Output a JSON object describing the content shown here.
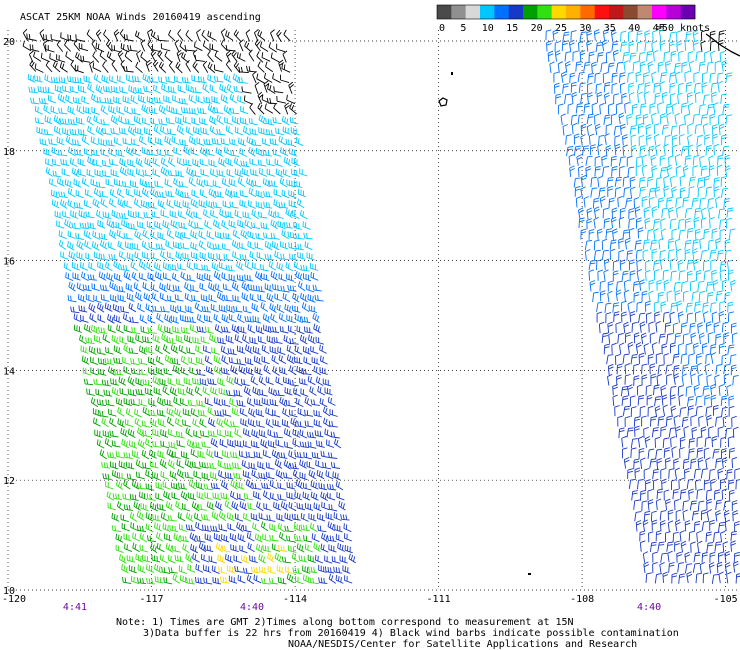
{
  "title": "ASCAT 25KM NOAA Winds 20160419 ascending",
  "color_scale": {
    "colors": [
      "#4a4a4a",
      "#909090",
      "#d8d8d8",
      "#00c8ff",
      "#0070ff",
      "#1838c8",
      "#00a000",
      "#30e010",
      "#ffd800",
      "#ffb000",
      "#ff6a00",
      "#ff1010",
      "#c01818",
      "#8a4a30",
      "#c08870",
      "#ff00ff",
      "#b800d8",
      "#6a00b0"
    ],
    "labels": [
      "0",
      "5",
      "10",
      "15",
      "20",
      "25",
      "30",
      "35",
      "40",
      "45",
      ">50 knots"
    ],
    "label_values": [
      0,
      5,
      10,
      15,
      20,
      25,
      30,
      35,
      40,
      45,
      50
    ]
  },
  "lat_labels": [
    {
      "value": 20,
      "text": "20"
    },
    {
      "value": 18,
      "text": "18"
    },
    {
      "value": 16,
      "text": "16"
    },
    {
      "value": 14,
      "text": "14"
    },
    {
      "value": 12,
      "text": "12"
    },
    {
      "value": 10,
      "text": "10"
    }
  ],
  "lon_labels": [
    {
      "value": -120,
      "text": "-120"
    },
    {
      "value": -117,
      "text": "-117"
    },
    {
      "value": -114,
      "text": "-114"
    },
    {
      "value": -111,
      "text": "-111"
    },
    {
      "value": -108,
      "text": "-108"
    },
    {
      "value": -105,
      "text": "-105"
    }
  ],
  "times": [
    {
      "lon": -118.6,
      "text": "4:41"
    },
    {
      "lon": -114.9,
      "text": "4:40"
    },
    {
      "lon": -106.6,
      "text": "4:40"
    }
  ],
  "notes": {
    "line1": "Note: 1) Times are GMT 2)Times along bottom correspond to measurement at 15N",
    "line2": "3)Data buffer is 22 hrs from 20160419 4) Black wind barbs indicate possible contamination",
    "line3": "NOAA/NESDIS/Center for Satellite Applications and Research"
  },
  "map": {
    "lon_range": [
      -120,
      -104.7
    ],
    "lat_range": [
      10,
      20.2
    ],
    "swaths": [
      {
        "name": "west",
        "north_lat": 20.0,
        "south_lat": 9.8,
        "north_lon": [
          -119.6,
          -114.1
        ],
        "south_lon": [
          -117.4,
          -112.6
        ]
      },
      {
        "name": "east",
        "north_lat": 20.0,
        "south_lat": 9.8,
        "north_lon": [
          -108.8,
          -105.0
        ],
        "south_lon": [
          -106.6,
          -104.7
        ]
      }
    ],
    "wind_colors": {
      "contaminated": "#000000",
      "speed_5_10": "#00c8ff",
      "speed_10_15": "#0070ff",
      "speed_15_20": "#1838c8",
      "speed_20_25": "#00a000",
      "speed_25_30": "#30e010",
      "speed_30_35": "#ffd800"
    }
  }
}
